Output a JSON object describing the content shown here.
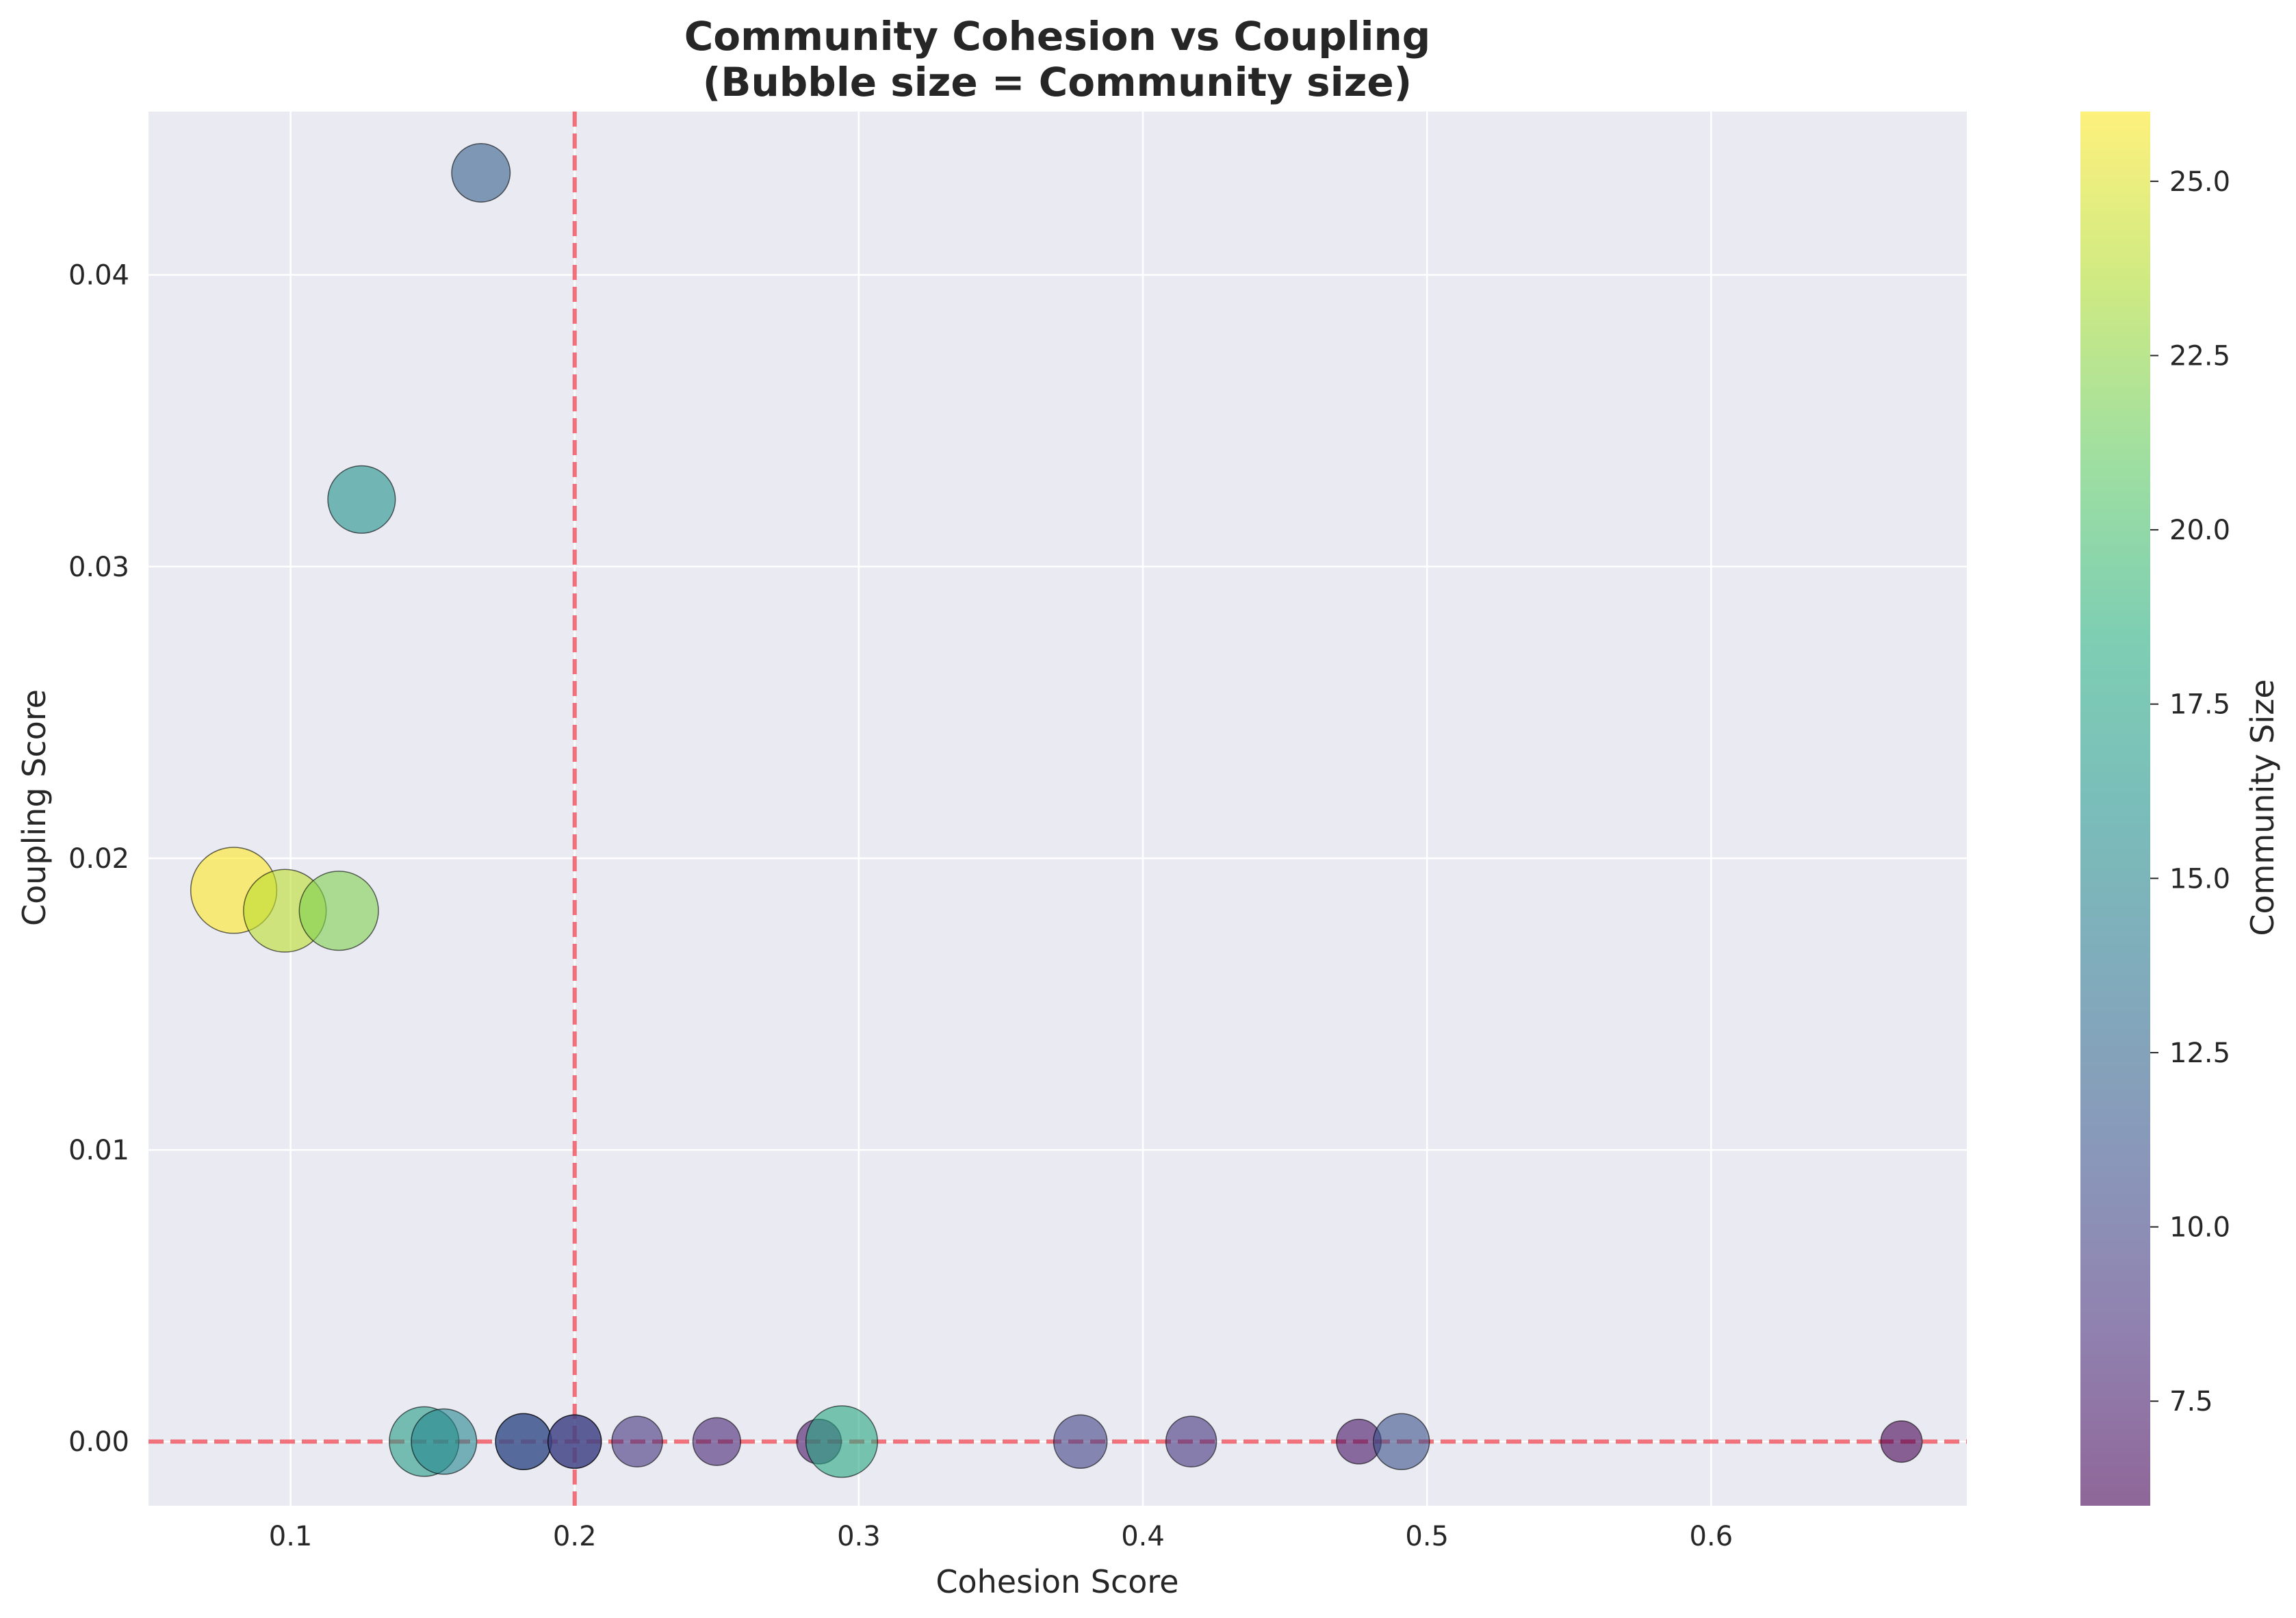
{
  "chart_data": {
    "type": "scatter",
    "title": "Community Cohesion vs Coupling",
    "subtitle": "(Bubble size = Community size)",
    "xlabel": "Cohesion Score",
    "ylabel": "Coupling Score",
    "xlim": [
      0.05,
      0.69
    ],
    "ylim": [
      -0.0022,
      0.0456
    ],
    "xticks": [
      0.1,
      0.2,
      0.3,
      0.4,
      0.5,
      0.6
    ],
    "xtick_labels": [
      "0.1",
      "0.2",
      "0.3",
      "0.4",
      "0.5",
      "0.6"
    ],
    "yticks": [
      0.0,
      0.01,
      0.02,
      0.03,
      0.04
    ],
    "ytick_labels": [
      "0.00",
      "0.01",
      "0.02",
      "0.03",
      "0.04"
    ],
    "grid": true,
    "plot_background": "#eaeaf2",
    "colormap": "viridis",
    "reference_lines": [
      {
        "orientation": "vertical",
        "value": 0.2,
        "style": "dashed",
        "color": "#f0444f"
      },
      {
        "orientation": "horizontal",
        "value": 0.0,
        "style": "dashed",
        "color": "#f0444f"
      }
    ],
    "colorbar": {
      "label": "Community Size",
      "range": [
        6,
        26
      ],
      "ticks": [
        7.5,
        10.0,
        12.5,
        15.0,
        17.5,
        20.0,
        22.5,
        25.0
      ],
      "tick_labels": [
        "7.5",
        "10.0",
        "12.5",
        "15.0",
        "17.5",
        "20.0",
        "22.5",
        "25.0"
      ]
    },
    "points": [
      {
        "x": 0.167,
        "y": 0.0435,
        "size": 12
      },
      {
        "x": 0.125,
        "y": 0.0323,
        "size": 16
      },
      {
        "x": 0.08,
        "y": 0.0189,
        "size": 26
      },
      {
        "x": 0.098,
        "y": 0.0182,
        "size": 24
      },
      {
        "x": 0.117,
        "y": 0.0182,
        "size": 22
      },
      {
        "x": 0.147,
        "y": 0.0,
        "size": 17
      },
      {
        "x": 0.154,
        "y": 0.0,
        "size": 15
      },
      {
        "x": 0.182,
        "y": 0.0,
        "size": 11
      },
      {
        "x": 0.182,
        "y": 0.0,
        "size": 11
      },
      {
        "x": 0.2,
        "y": 0.0,
        "size": 10
      },
      {
        "x": 0.2,
        "y": 0.0,
        "size": 10
      },
      {
        "x": 0.222,
        "y": 0.0,
        "size": 9
      },
      {
        "x": 0.25,
        "y": 0.0,
        "size": 8
      },
      {
        "x": 0.286,
        "y": 0.0,
        "size": 7
      },
      {
        "x": 0.294,
        "y": 0.0,
        "size": 18
      },
      {
        "x": 0.378,
        "y": 0.0,
        "size": 10
      },
      {
        "x": 0.417,
        "y": 0.0,
        "size": 9
      },
      {
        "x": 0.476,
        "y": 0.0,
        "size": 7
      },
      {
        "x": 0.491,
        "y": 0.0,
        "size": 11
      },
      {
        "x": 0.667,
        "y": 0.0,
        "size": 6
      }
    ]
  }
}
